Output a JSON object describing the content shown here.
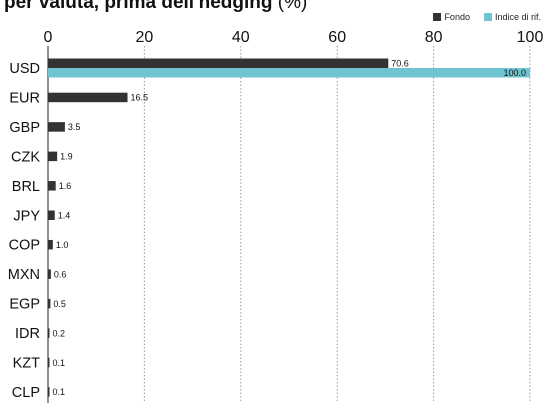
{
  "title": "per valuta, prima dell'hedging",
  "title_unit": "(%)",
  "legend": [
    {
      "label": "Fondo",
      "color": "#333333"
    },
    {
      "label": "Indice di rif.",
      "color": "#6fc4d1"
    }
  ],
  "chart_data": {
    "type": "bar",
    "orientation": "horizontal",
    "title": "per valuta, prima dell'hedging (%)",
    "xlim": [
      0,
      100
    ],
    "x_ticks": [
      0,
      20,
      40,
      60,
      80,
      100
    ],
    "grid": "vertical dotted",
    "legend_position": "top-right",
    "categories": [
      "USD",
      "EUR",
      "GBP",
      "CZK",
      "BRL",
      "JPY",
      "COP",
      "MXN",
      "EGP",
      "IDR",
      "KZT",
      "CLP"
    ],
    "series": [
      {
        "name": "Fondo",
        "color": "#333333",
        "values": [
          70.6,
          16.5,
          3.5,
          1.9,
          1.6,
          1.4,
          1.0,
          0.6,
          0.5,
          0.2,
          0.1,
          0.1
        ],
        "labels": [
          "70.6",
          "16.5",
          "3.5",
          "1.9",
          "1.6",
          "1.4",
          "1.0",
          "0.6",
          "0.5",
          "0.2",
          "0.1",
          "0.1"
        ]
      },
      {
        "name": "Indice di rif.",
        "color": "#6fc4d1",
        "values": [
          100.0,
          null,
          null,
          null,
          null,
          null,
          null,
          null,
          null,
          null,
          null,
          null
        ],
        "labels": [
          "100.0",
          "",
          "",
          "",
          "",
          "",
          "",
          "",
          "",
          "",
          "",
          ""
        ]
      }
    ]
  }
}
